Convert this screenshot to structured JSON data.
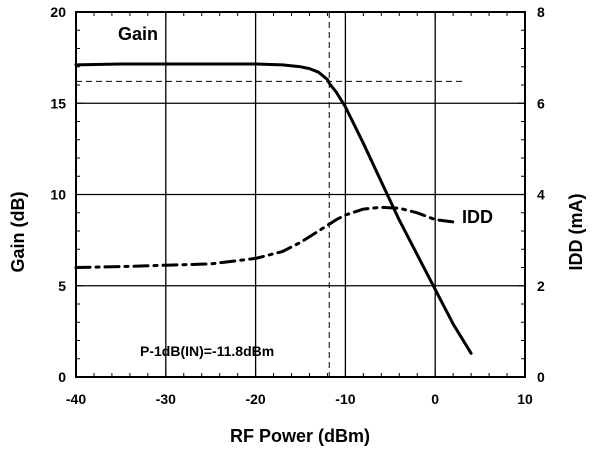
{
  "chart_data": {
    "type": "line",
    "title": "",
    "xlabel": "RF Power (dBm)",
    "ylabel": "Gain (dB)",
    "y2label": "IDD (mA)",
    "xlim": [
      -40,
      10
    ],
    "ylim": [
      0,
      20
    ],
    "y2lim": [
      0,
      8
    ],
    "grid": true,
    "x_ticks": [
      -40,
      -30,
      -20,
      -10,
      0,
      10
    ],
    "y_ticks": [
      0,
      5,
      10,
      15,
      20
    ],
    "y2_ticks": [
      0,
      2,
      4,
      6,
      8
    ],
    "series": [
      {
        "name": "Gain",
        "axis": "left",
        "style": "solid",
        "x": [
          -40,
          -35,
          -30,
          -25,
          -20,
          -17,
          -15,
          -14,
          -13,
          -12,
          -11.8,
          -11,
          -10,
          -8,
          -6,
          -4,
          -2,
          0,
          2,
          4
        ],
        "y": [
          17.1,
          17.15,
          17.15,
          17.15,
          17.15,
          17.1,
          17.0,
          16.9,
          16.7,
          16.3,
          16.1,
          15.6,
          14.8,
          12.8,
          10.7,
          8.6,
          6.7,
          4.8,
          2.9,
          1.3
        ]
      },
      {
        "name": "IDD",
        "axis": "right",
        "style": "dashdot",
        "x": [
          -40,
          -35,
          -30,
          -25,
          -20,
          -17,
          -15,
          -13,
          -11,
          -10,
          -8,
          -6,
          -4,
          -2,
          0,
          2
        ],
        "y": [
          2.4,
          2.42,
          2.45,
          2.48,
          2.6,
          2.75,
          2.95,
          3.2,
          3.45,
          3.55,
          3.68,
          3.72,
          3.7,
          3.6,
          3.45,
          3.4
        ]
      }
    ],
    "reference_lines": {
      "vertical_x": -11.8,
      "horizontal_y": 16.2
    },
    "annotations": {
      "gain_label": "Gain",
      "idd_label": "IDD",
      "p1db_label": "P-1dB(IN)=-11.8dBm"
    }
  }
}
